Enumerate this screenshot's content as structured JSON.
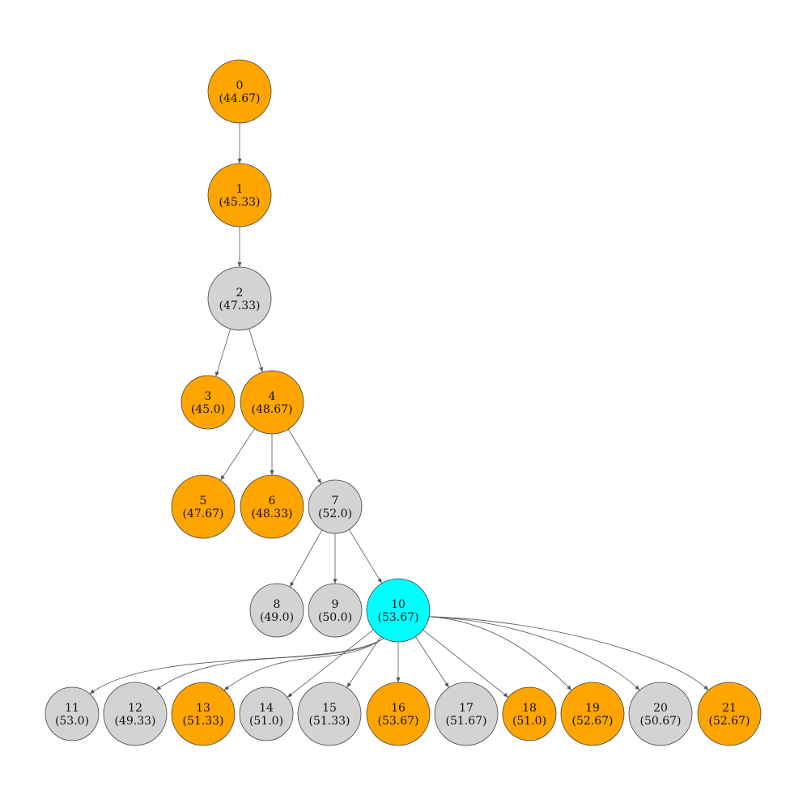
{
  "colors": {
    "orange": "#FFA500",
    "gray": "#D3D3D3",
    "cyan": "#00FFFF"
  },
  "nodes": [
    {
      "id": "0",
      "value": "(44.67)",
      "color": "orange"
    },
    {
      "id": "1",
      "value": "(45.33)",
      "color": "orange"
    },
    {
      "id": "2",
      "value": "(47.33)",
      "color": "gray"
    },
    {
      "id": "3",
      "value": "(45.0)",
      "color": "orange"
    },
    {
      "id": "4",
      "value": "(48.67)",
      "color": "orange"
    },
    {
      "id": "5",
      "value": "(47.67)",
      "color": "orange"
    },
    {
      "id": "6",
      "value": "(48.33)",
      "color": "orange"
    },
    {
      "id": "7",
      "value": "(52.0)",
      "color": "gray"
    },
    {
      "id": "8",
      "value": "(49.0)",
      "color": "gray"
    },
    {
      "id": "9",
      "value": "(50.0)",
      "color": "gray"
    },
    {
      "id": "10",
      "value": "(53.67)",
      "color": "cyan"
    },
    {
      "id": "11",
      "value": "(53.0)",
      "color": "gray"
    },
    {
      "id": "12",
      "value": "(49.33)",
      "color": "gray"
    },
    {
      "id": "13",
      "value": "(51.33)",
      "color": "orange"
    },
    {
      "id": "14",
      "value": "(51.0)",
      "color": "gray"
    },
    {
      "id": "15",
      "value": "(51.33)",
      "color": "gray"
    },
    {
      "id": "16",
      "value": "(53.67)",
      "color": "orange"
    },
    {
      "id": "17",
      "value": "(51.67)",
      "color": "gray"
    },
    {
      "id": "18",
      "value": "(51.0)",
      "color": "orange"
    },
    {
      "id": "19",
      "value": "(52.67)",
      "color": "orange"
    },
    {
      "id": "20",
      "value": "(50.67)",
      "color": "gray"
    },
    {
      "id": "21",
      "value": "(52.67)",
      "color": "orange"
    }
  ],
  "edges": [
    [
      "0",
      "1"
    ],
    [
      "1",
      "2"
    ],
    [
      "2",
      "3"
    ],
    [
      "2",
      "4"
    ],
    [
      "4",
      "5"
    ],
    [
      "4",
      "6"
    ],
    [
      "4",
      "7"
    ],
    [
      "7",
      "8"
    ],
    [
      "7",
      "9"
    ],
    [
      "7",
      "10"
    ],
    [
      "10",
      "11"
    ],
    [
      "10",
      "12"
    ],
    [
      "10",
      "13"
    ],
    [
      "10",
      "14"
    ],
    [
      "10",
      "15"
    ],
    [
      "10",
      "16"
    ],
    [
      "10",
      "17"
    ],
    [
      "10",
      "18"
    ],
    [
      "10",
      "19"
    ],
    [
      "10",
      "20"
    ],
    [
      "10",
      "21"
    ]
  ]
}
